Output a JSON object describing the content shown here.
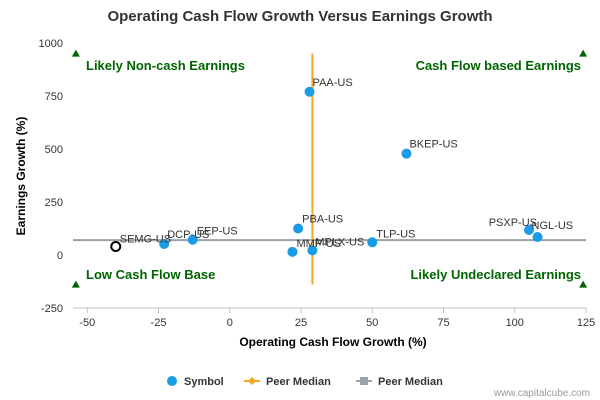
{
  "chart_data": {
    "type": "scatter",
    "title": "Operating Cash Flow Growth Versus Earnings Growth",
    "xlabel": "Operating Cash Flow Growth (%)",
    "ylabel": "Earnings Growth (%)",
    "xlim": [
      -55,
      125
    ],
    "ylim": [
      -250,
      1000
    ],
    "x_ticks": [
      -50,
      -25,
      0,
      25,
      50,
      75,
      100,
      125
    ],
    "y_ticks": [
      -250,
      0,
      250,
      500,
      750,
      1000
    ],
    "peer_median_x": 29,
    "peer_median_y": 70,
    "quadrants": {
      "top_left": "Likely Non-cash Earnings",
      "top_right": "Cash Flow based Earnings",
      "bottom_left": "Low Cash Flow Base",
      "bottom_right": "Likely Undeclared Earnings"
    },
    "highlight": {
      "name": "SEMG-US",
      "x": -40,
      "y": 40
    },
    "points": [
      {
        "name": "PAA-US",
        "x": 28,
        "y": 770
      },
      {
        "name": "BKEP-US",
        "x": 62,
        "y": 478
      },
      {
        "name": "PBA-US",
        "x": 24,
        "y": 125
      },
      {
        "name": "NGL-US",
        "x": 108,
        "y": 85
      },
      {
        "name": "PSXP-US",
        "x": 105,
        "y": 118
      },
      {
        "name": "TLP-US",
        "x": 50,
        "y": 60
      },
      {
        "name": "EEP-US",
        "x": -13,
        "y": 72
      },
      {
        "name": "DCP-US",
        "x": -23,
        "y": 52
      },
      {
        "name": "MMP-US",
        "x": 22,
        "y": 15
      },
      {
        "name": "MPLX-US",
        "x": 29,
        "y": 22
      }
    ],
    "legend": [
      {
        "name": "Symbol",
        "color": "#1a9be6"
      },
      {
        "name": "Peer Median",
        "color": "#f5a623"
      },
      {
        "name": "Peer Median",
        "color": "#9aa1a8"
      }
    ],
    "credit": "www.capitalcube.com",
    "colors": {
      "point": "#1a9be6",
      "vline": "#f5a623",
      "hline": "#9aa1a8",
      "quad_text": "#006400",
      "marker": "#006400"
    }
  }
}
